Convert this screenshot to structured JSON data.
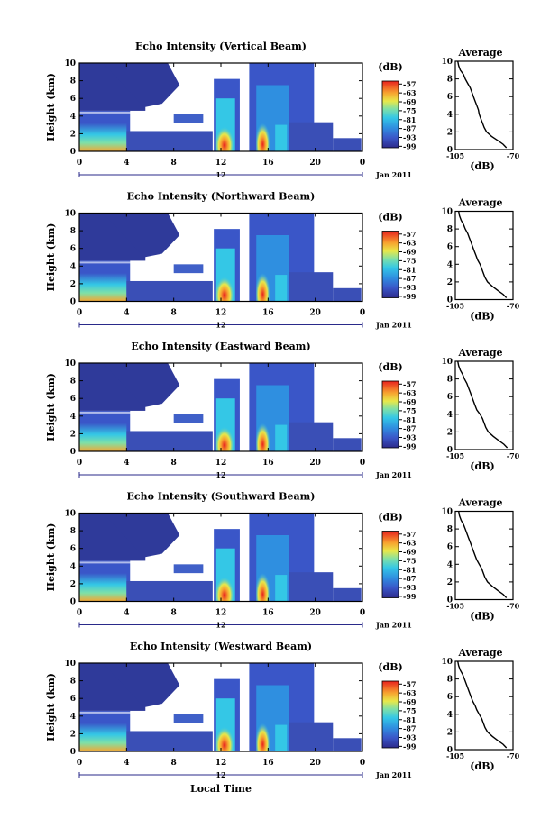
{
  "x_axis_label": "Local Time",
  "chart_data": [
    {
      "type": "heatmap",
      "title": "Echo Intensity (Vertical Beam)",
      "ylabel": "Height (km)",
      "xlabel": "",
      "x_ticks": [
        "0",
        "4",
        "8",
        "12",
        "16",
        "20",
        "0"
      ],
      "y_ticks": [
        "0",
        "2",
        "4",
        "6",
        "8",
        "10"
      ],
      "xlim": [
        0,
        24
      ],
      "ylim": [
        0,
        10
      ],
      "date_marker": "12",
      "date_label": "Jan 2011",
      "colorbar": {
        "label": "(dB)",
        "ticks": [
          "-57",
          "-63",
          "-69",
          "-75",
          "-81",
          "-87",
          "-93",
          "-99"
        ],
        "range": [
          -100,
          -55
        ]
      },
      "profile": {
        "title": "Average",
        "xlabel": "(dB)",
        "x_ticks": [
          "-105",
          "-70"
        ],
        "xlim": [
          -105,
          -70
        ],
        "ylim": [
          0,
          10
        ],
        "points": [
          [
            -103.5,
            10
          ],
          [
            -103,
            9.5
          ],
          [
            -102,
            9
          ],
          [
            -100,
            8.5
          ],
          [
            -99,
            8
          ],
          [
            -97.5,
            7.5
          ],
          [
            -96,
            7
          ],
          [
            -95,
            6.5
          ],
          [
            -94,
            6
          ],
          [
            -93,
            5.5
          ],
          [
            -92,
            5
          ],
          [
            -91,
            4.5
          ],
          [
            -90.5,
            4
          ],
          [
            -89.5,
            3.5
          ],
          [
            -88.5,
            3
          ],
          [
            -87.5,
            2.5
          ],
          [
            -86,
            2
          ],
          [
            -83,
            1.5
          ],
          [
            -79,
            1
          ],
          [
            -76,
            0.6
          ],
          [
            -74,
            0.2
          ]
        ]
      }
    },
    {
      "type": "heatmap",
      "title": "Echo Intensity (Northward Beam)",
      "ylabel": "Height (km)",
      "xlabel": "",
      "x_ticks": [
        "0",
        "4",
        "8",
        "12",
        "16",
        "20",
        "0"
      ],
      "y_ticks": [
        "0",
        "2",
        "4",
        "6",
        "8",
        "10"
      ],
      "xlim": [
        0,
        24
      ],
      "ylim": [
        0,
        10
      ],
      "date_marker": "12",
      "date_label": "Jan 2011",
      "colorbar": {
        "label": "(dB)",
        "ticks": [
          "-57",
          "-63",
          "-69",
          "-75",
          "-81",
          "-87",
          "-93",
          "-99"
        ],
        "range": [
          -100,
          -55
        ]
      },
      "profile": {
        "title": "Average",
        "xlabel": "(dB)",
        "x_ticks": [
          "-105",
          "-70"
        ],
        "xlim": [
          -105,
          -70
        ],
        "ylim": [
          0,
          10
        ],
        "points": [
          [
            -103,
            10
          ],
          [
            -102.5,
            9.5
          ],
          [
            -101.5,
            9
          ],
          [
            -100,
            8.5
          ],
          [
            -99,
            8
          ],
          [
            -97.5,
            7.5
          ],
          [
            -96.5,
            7
          ],
          [
            -95.5,
            6.5
          ],
          [
            -94.5,
            6
          ],
          [
            -93.5,
            5.5
          ],
          [
            -92.5,
            5
          ],
          [
            -91.5,
            4.5
          ],
          [
            -90,
            4
          ],
          [
            -89,
            3.5
          ],
          [
            -88,
            3
          ],
          [
            -87,
            2.5
          ],
          [
            -85.5,
            2
          ],
          [
            -82.5,
            1.5
          ],
          [
            -79,
            1
          ],
          [
            -76,
            0.6
          ],
          [
            -74,
            0.2
          ]
        ]
      }
    },
    {
      "type": "heatmap",
      "title": "Echo Intensity (Eastward Beam)",
      "ylabel": "Height (km)",
      "xlabel": "",
      "x_ticks": [
        "0",
        "4",
        "8",
        "12",
        "16",
        "20",
        "0"
      ],
      "y_ticks": [
        "0",
        "2",
        "4",
        "6",
        "8",
        "10"
      ],
      "xlim": [
        0,
        24
      ],
      "ylim": [
        0,
        10
      ],
      "date_marker": "12",
      "date_label": "Jan 2011",
      "colorbar": {
        "label": "(dB)",
        "ticks": [
          "-57",
          "-63",
          "-69",
          "-75",
          "-81",
          "-87",
          "-93",
          "-99"
        ],
        "range": [
          -100,
          -55
        ]
      },
      "profile": {
        "title": "Average",
        "xlabel": "(dB)",
        "x_ticks": [
          "-105",
          "-70"
        ],
        "xlim": [
          -105,
          -70
        ],
        "ylim": [
          0,
          10
        ],
        "points": [
          [
            -103.5,
            10
          ],
          [
            -103,
            9.5
          ],
          [
            -102,
            9
          ],
          [
            -100.5,
            8.5
          ],
          [
            -99.5,
            8
          ],
          [
            -98,
            7.5
          ],
          [
            -97,
            7
          ],
          [
            -96,
            6.5
          ],
          [
            -95,
            6
          ],
          [
            -94,
            5.5
          ],
          [
            -93,
            5
          ],
          [
            -92,
            4.5
          ],
          [
            -90,
            4
          ],
          [
            -88.5,
            3.5
          ],
          [
            -87.5,
            3
          ],
          [
            -86.5,
            2.5
          ],
          [
            -85,
            2
          ],
          [
            -82,
            1.5
          ],
          [
            -78.5,
            1
          ],
          [
            -75.5,
            0.6
          ],
          [
            -73.5,
            0.2
          ]
        ]
      }
    },
    {
      "type": "heatmap",
      "title": "Echo Intensity (Southward Beam)",
      "ylabel": "Height (km)",
      "xlabel": "",
      "x_ticks": [
        "0",
        "4",
        "8",
        "12",
        "16",
        "20",
        "0"
      ],
      "y_ticks": [
        "0",
        "2",
        "4",
        "6",
        "8",
        "10"
      ],
      "xlim": [
        0,
        24
      ],
      "ylim": [
        0,
        10
      ],
      "date_marker": "12",
      "date_label": "Jan 2011",
      "colorbar": {
        "label": "(dB)",
        "ticks": [
          "-57",
          "-63",
          "-69",
          "-75",
          "-81",
          "-87",
          "-93",
          "-99"
        ],
        "range": [
          -100,
          -55
        ]
      },
      "profile": {
        "title": "Average",
        "xlabel": "(dB)",
        "x_ticks": [
          "-105",
          "-70"
        ],
        "xlim": [
          -105,
          -70
        ],
        "ylim": [
          0,
          10
        ],
        "points": [
          [
            -103,
            10
          ],
          [
            -102.5,
            9.5
          ],
          [
            -101.5,
            9
          ],
          [
            -100,
            8.5
          ],
          [
            -99,
            8
          ],
          [
            -98,
            7.5
          ],
          [
            -97,
            7
          ],
          [
            -96,
            6.5
          ],
          [
            -95,
            6
          ],
          [
            -94,
            5.5
          ],
          [
            -93,
            5
          ],
          [
            -92,
            4.5
          ],
          [
            -90.5,
            4
          ],
          [
            -89,
            3.5
          ],
          [
            -88,
            3
          ],
          [
            -87,
            2.5
          ],
          [
            -85.5,
            2
          ],
          [
            -82.5,
            1.5
          ],
          [
            -79,
            1
          ],
          [
            -76,
            0.6
          ],
          [
            -74,
            0.2
          ]
        ]
      }
    },
    {
      "type": "heatmap",
      "title": "Echo Intensity (Westward Beam)",
      "ylabel": "Height (km)",
      "xlabel": "",
      "x_ticks": [
        "0",
        "4",
        "8",
        "12",
        "16",
        "20",
        "0"
      ],
      "y_ticks": [
        "0",
        "2",
        "4",
        "6",
        "8",
        "10"
      ],
      "xlim": [
        0,
        24
      ],
      "ylim": [
        0,
        10
      ],
      "date_marker": "12",
      "date_label": "Jan 2011",
      "colorbar": {
        "label": "(dB)",
        "ticks": [
          "-57",
          "-63",
          "-69",
          "-75",
          "-81",
          "-87",
          "-93",
          "-99"
        ],
        "range": [
          -100,
          -55
        ]
      },
      "profile": {
        "title": "Average",
        "xlabel": "(dB)",
        "x_ticks": [
          "-105",
          "-70"
        ],
        "xlim": [
          -105,
          -70
        ],
        "ylim": [
          0,
          10
        ],
        "points": [
          [
            -103.5,
            10
          ],
          [
            -103,
            9.5
          ],
          [
            -102,
            9
          ],
          [
            -100.5,
            8.5
          ],
          [
            -99.5,
            8
          ],
          [
            -98.5,
            7.5
          ],
          [
            -97.5,
            7
          ],
          [
            -96.5,
            6.5
          ],
          [
            -95.5,
            6
          ],
          [
            -94.5,
            5.5
          ],
          [
            -93,
            5
          ],
          [
            -92,
            4.5
          ],
          [
            -90.5,
            4
          ],
          [
            -89,
            3.5
          ],
          [
            -88,
            3
          ],
          [
            -87,
            2.5
          ],
          [
            -85.5,
            2
          ],
          [
            -82.5,
            1.5
          ],
          [
            -79,
            1
          ],
          [
            -76,
            0.6
          ],
          [
            -74,
            0.2
          ]
        ]
      }
    }
  ]
}
